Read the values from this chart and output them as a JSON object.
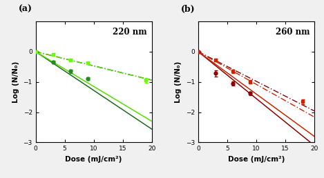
{
  "panel_a": {
    "wavelength": "220 nm",
    "ba2_circles": {
      "x": [
        0,
        3,
        6,
        9
      ],
      "y": [
        0,
        -0.35,
        -0.65,
        -0.9
      ],
      "yerr": [
        0.02,
        0.05,
        0.05,
        0.05
      ],
      "color": "#228B22",
      "marker": "o"
    },
    "ba5_squares": {
      "x": [
        0,
        3,
        6,
        9,
        19
      ],
      "y": [
        0,
        -0.1,
        -0.28,
        -0.38,
        -0.95
      ],
      "yerr": [
        0.02,
        0.04,
        0.04,
        0.04,
        0.07
      ],
      "color": "#66ff00",
      "marker": "s"
    },
    "line_solid_dark": {
      "slope": -0.128,
      "color": "#1a6b1a"
    },
    "line_solid_bright": {
      "slope": -0.115,
      "color": "#55dd00"
    },
    "line_dash_dark": {
      "slope": -0.047,
      "color": "#1a6b1a"
    },
    "line_dash_bright": {
      "slope": -0.047,
      "color": "#55dd00"
    }
  },
  "panel_b": {
    "wavelength": "260 nm",
    "ba2_circles": {
      "x": [
        0,
        3,
        6,
        9
      ],
      "y": [
        0,
        -0.72,
        -1.05,
        -1.38
      ],
      "yerr": [
        0.02,
        0.1,
        0.06,
        0.06
      ],
      "color": "#8B0000",
      "marker": "o"
    },
    "ba5_squares": {
      "x": [
        0,
        3,
        6,
        9,
        18
      ],
      "y": [
        0,
        -0.28,
        -0.65,
        -1.0,
        -1.65
      ],
      "yerr": [
        0.02,
        0.05,
        0.05,
        0.06,
        0.08
      ],
      "color": "#cc2200",
      "marker": "s"
    },
    "line_solid_dark": {
      "slope": -0.155,
      "color": "#8B0000"
    },
    "line_solid_bright": {
      "slope": -0.14,
      "color": "#cc2200"
    },
    "line_dash_dark": {
      "slope": -0.098,
      "color": "#8B0000"
    },
    "line_dash_bright": {
      "slope": -0.108,
      "color": "#cc2200"
    }
  },
  "xlim": [
    0,
    20
  ],
  "ylim": [
    -3,
    1
  ],
  "yticks": [
    -3,
    -2,
    -1,
    0
  ],
  "xticks": [
    0,
    5,
    10,
    15,
    20
  ],
  "xlabel": "Dose (mJ/cm²)",
  "ylabel": "Log (N/N₀)",
  "figsize": [
    4.69,
    2.58
  ],
  "dpi": 100
}
